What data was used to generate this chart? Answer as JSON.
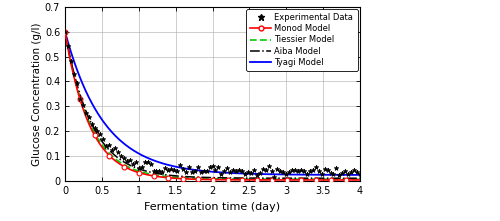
{
  "title": "",
  "xlabel": "Fermentation time (day)",
  "ylabel": "Glucose Concentration (g/l)",
  "xlim": [
    0,
    4
  ],
  "ylim": [
    0,
    0.7
  ],
  "xticks": [
    0,
    0.5,
    1.0,
    1.5,
    2.0,
    2.5,
    3.0,
    3.5,
    4.0
  ],
  "yticks": [
    0,
    0.1,
    0.2,
    0.3,
    0.4,
    0.5,
    0.6,
    0.7
  ],
  "background_color": "#ffffff",
  "monod_color": "#ff0000",
  "tiessier_color": "#00cc00",
  "aiba_color": "#000000",
  "tyagi_color": "#0000ff",
  "exp_color": "#000000",
  "grid_color": "#aaaaaa"
}
